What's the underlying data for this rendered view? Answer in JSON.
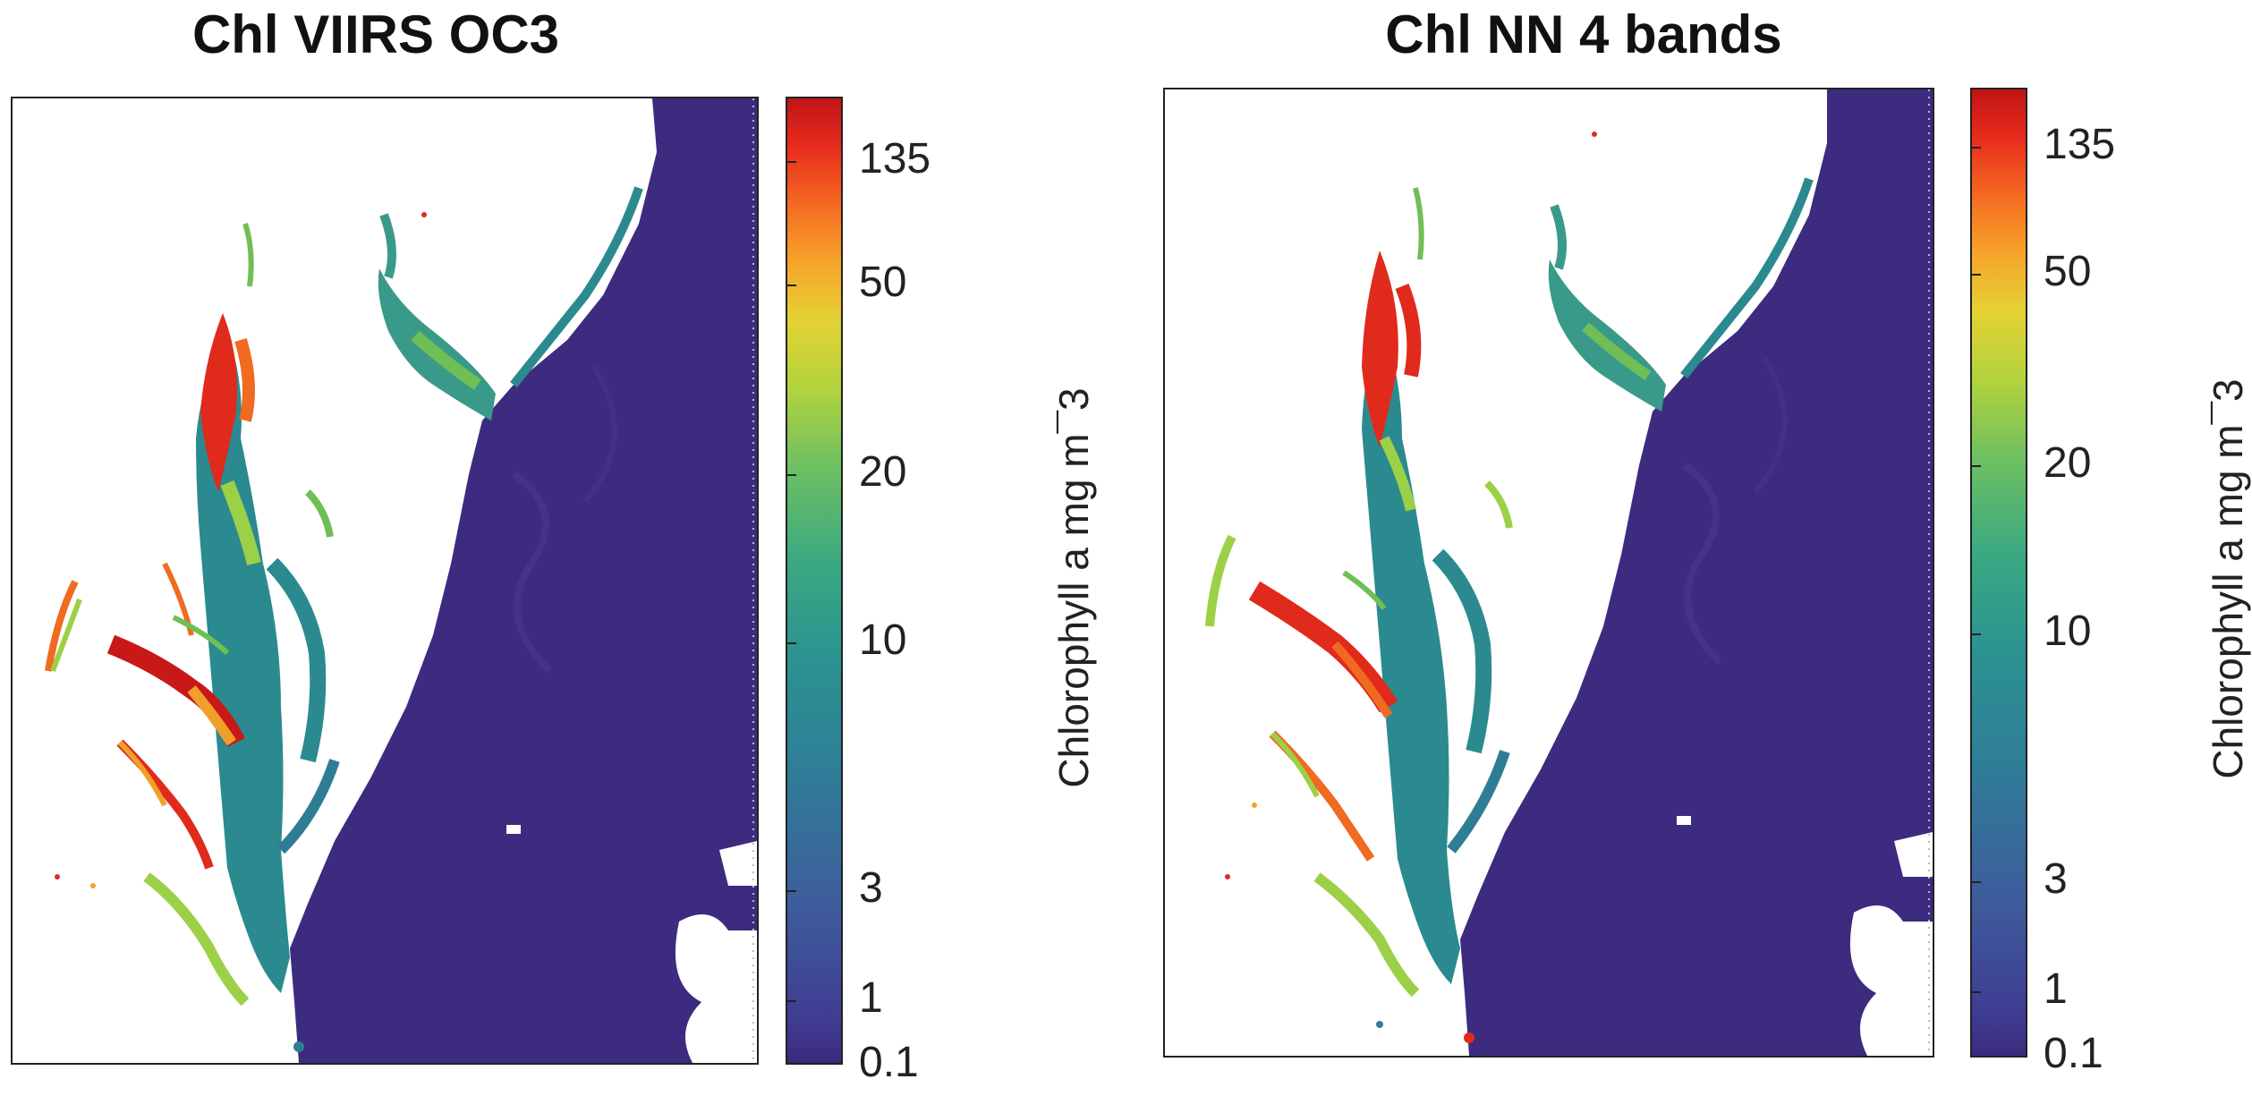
{
  "panels": [
    {
      "title": "Chl VIIRS OC3",
      "colorbar": {
        "label": "Chlorophyll a mg m¯3",
        "ticks": [
          "135",
          "50",
          "20",
          "10",
          "3",
          "1",
          "0.1"
        ]
      }
    },
    {
      "title": "Chl NN 4 bands",
      "colorbar": {
        "label": "Chlorophyll a mg m¯3",
        "ticks": [
          "135",
          "50",
          "20",
          "10",
          "3",
          "1",
          "0.1"
        ]
      }
    }
  ],
  "colors": {
    "ocean": "#3d2b7f",
    "bay": "#2b8a8f",
    "high": "#e02a1c",
    "mid": "#9cd046",
    "land": "#ffffff"
  }
}
